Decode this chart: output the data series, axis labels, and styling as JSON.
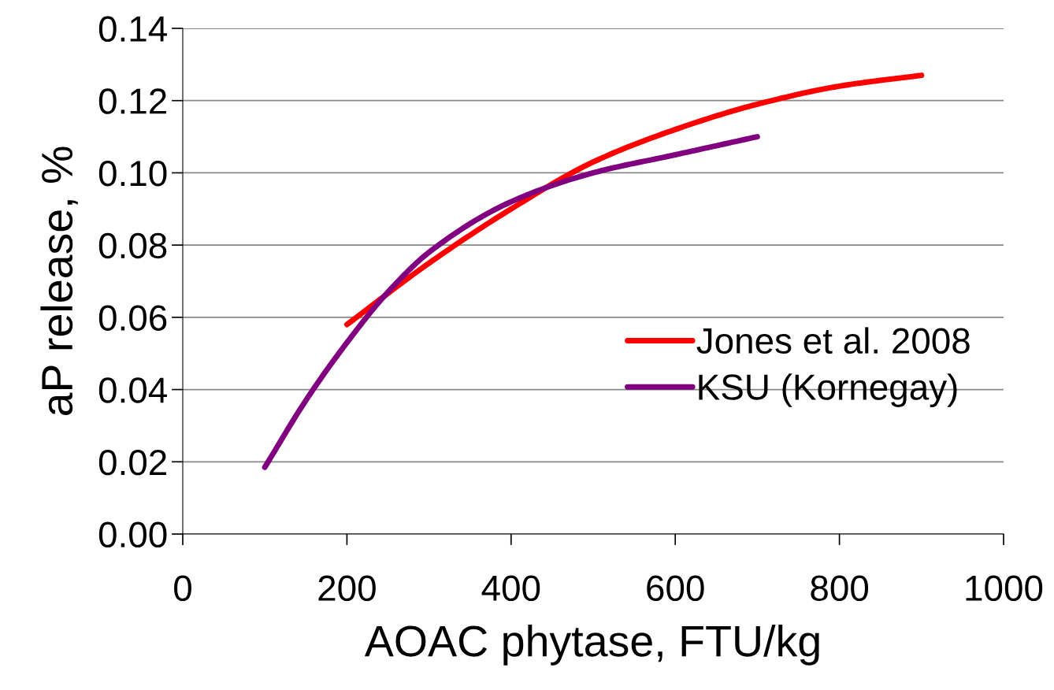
{
  "chart_data": {
    "type": "line",
    "xlabel": "AOAC phytase, FTU/kg",
    "ylabel": "aP release, %",
    "xlim": [
      0,
      1000
    ],
    "xticks": [
      0,
      200,
      400,
      600,
      800,
      1000
    ],
    "ylim": [
      0,
      0.14
    ],
    "yticks": [
      {
        "value": 0,
        "label": "0.00"
      },
      {
        "value": 0.02,
        "label": "0.02"
      },
      {
        "value": 0.04,
        "label": "0.04"
      },
      {
        "value": 0.06,
        "label": "0.06"
      },
      {
        "value": 0.08,
        "label": "0.08"
      },
      {
        "value": 0.1,
        "label": "0.10"
      },
      {
        "value": 0.12,
        "label": "0.12"
      },
      {
        "value": 0.14,
        "label": "0.14"
      }
    ],
    "grid": "y",
    "legend": "right",
    "marker": "none",
    "line_style": "solid",
    "series": [
      {
        "name": "Jones et al. 2008",
        "color": "#ff0000",
        "x": [
          200,
          300,
          400,
          500,
          600,
          700,
          800,
          900
        ],
        "values": [
          0.058,
          0.075,
          0.09,
          0.103,
          0.112,
          0.119,
          0.124,
          0.127
        ]
      },
      {
        "name": "KSU (Kornegay)",
        "color": "#800080",
        "x": [
          100,
          150,
          200,
          250,
          300,
          400,
          500,
          600,
          700
        ],
        "values": [
          0.0185,
          0.037,
          0.053,
          0.067,
          0.078,
          0.092,
          0.1,
          0.105,
          0.11
        ]
      }
    ]
  }
}
